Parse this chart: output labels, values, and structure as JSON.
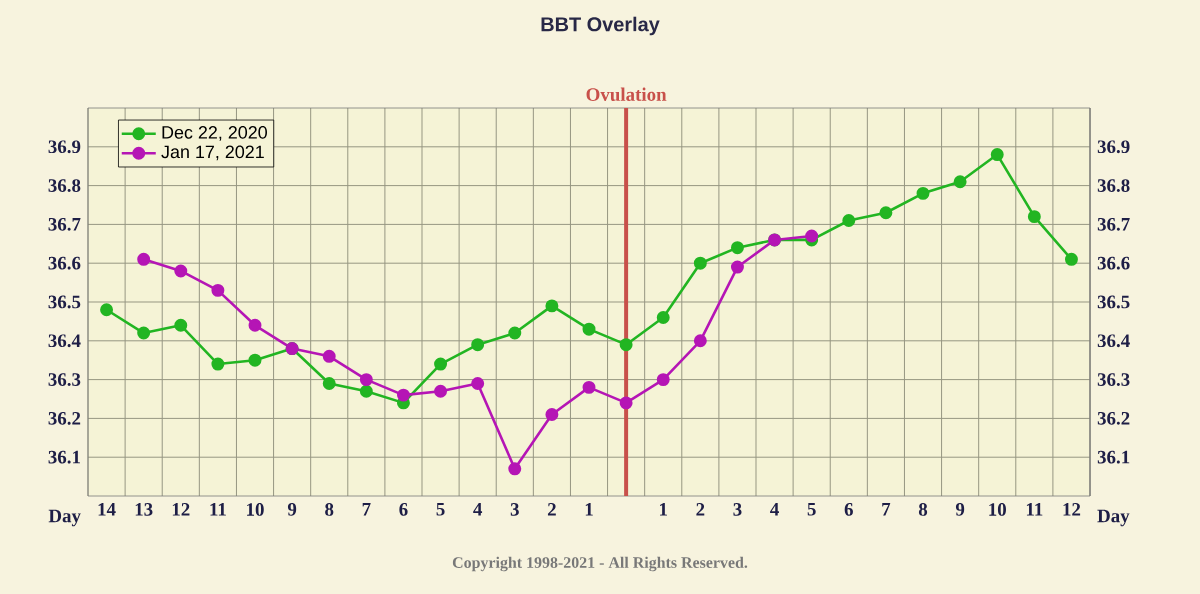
{
  "chart_data": {
    "type": "line",
    "title": "BBT Overlay",
    "xlabel": "Day",
    "x": [
      -14,
      -13,
      -12,
      -11,
      -10,
      -9,
      -8,
      -7,
      -6,
      -5,
      -4,
      -3,
      -2,
      -1,
      0,
      1,
      2,
      3,
      4,
      5,
      6,
      7,
      8,
      9,
      10,
      11,
      12
    ],
    "series": [
      {
        "name": "Dec 22, 2020",
        "color": "#22b522",
        "values": [
          36.48,
          36.42,
          36.44,
          36.34,
          36.35,
          36.38,
          36.29,
          36.27,
          36.24,
          36.34,
          36.39,
          36.42,
          36.49,
          36.43,
          36.39,
          36.46,
          36.6,
          36.64,
          36.66,
          36.66,
          36.71,
          36.73,
          36.78,
          36.81,
          36.88,
          36.72,
          36.61
        ]
      },
      {
        "name": "Jan 17, 2021",
        "color": "#b515b5",
        "values": [
          null,
          36.61,
          36.58,
          36.53,
          36.44,
          36.38,
          36.36,
          36.3,
          36.26,
          36.27,
          36.29,
          36.07,
          36.21,
          36.28,
          36.24,
          36.3,
          36.4,
          36.59,
          36.66,
          36.67,
          null,
          null,
          null,
          null,
          null,
          null,
          null
        ]
      }
    ],
    "xlim": [
      -14.5,
      12.5
    ],
    "xticks": [
      {
        "value": -14,
        "label": "14"
      },
      {
        "value": -13,
        "label": "13"
      },
      {
        "value": -12,
        "label": "12"
      },
      {
        "value": -11,
        "label": "11"
      },
      {
        "value": -10,
        "label": "10"
      },
      {
        "value": -9,
        "label": "9"
      },
      {
        "value": -8,
        "label": "8"
      },
      {
        "value": -7,
        "label": "7"
      },
      {
        "value": -6,
        "label": "6"
      },
      {
        "value": -5,
        "label": "5"
      },
      {
        "value": -4,
        "label": "4"
      },
      {
        "value": -3,
        "label": "3"
      },
      {
        "value": -2,
        "label": "2"
      },
      {
        "value": -1,
        "label": "1"
      },
      {
        "value": 0,
        "label": null
      },
      1,
      2,
      3,
      4,
      5,
      6,
      7,
      8,
      9,
      10,
      11,
      12
    ],
    "ylim": [
      36.0,
      37.0
    ],
    "yticks": [
      36.1,
      36.2,
      36.3,
      36.4,
      36.5,
      36.6,
      36.7,
      36.8,
      36.9
    ],
    "y2lim": [
      36.0,
      37.0
    ],
    "y2ticks": [
      36.1,
      36.2,
      36.3,
      36.4,
      36.5,
      36.6,
      36.7,
      36.8,
      36.9
    ],
    "ref_lines": [
      {
        "axis": "x",
        "value": 0,
        "label": "Ovulation",
        "color": "#c8504a"
      }
    ],
    "annotations": [
      "Copyright 1998-2021 - All Rights Reserved."
    ],
    "grid": true,
    "legend": "top left",
    "marker": "circle",
    "line_style": "solid"
  }
}
